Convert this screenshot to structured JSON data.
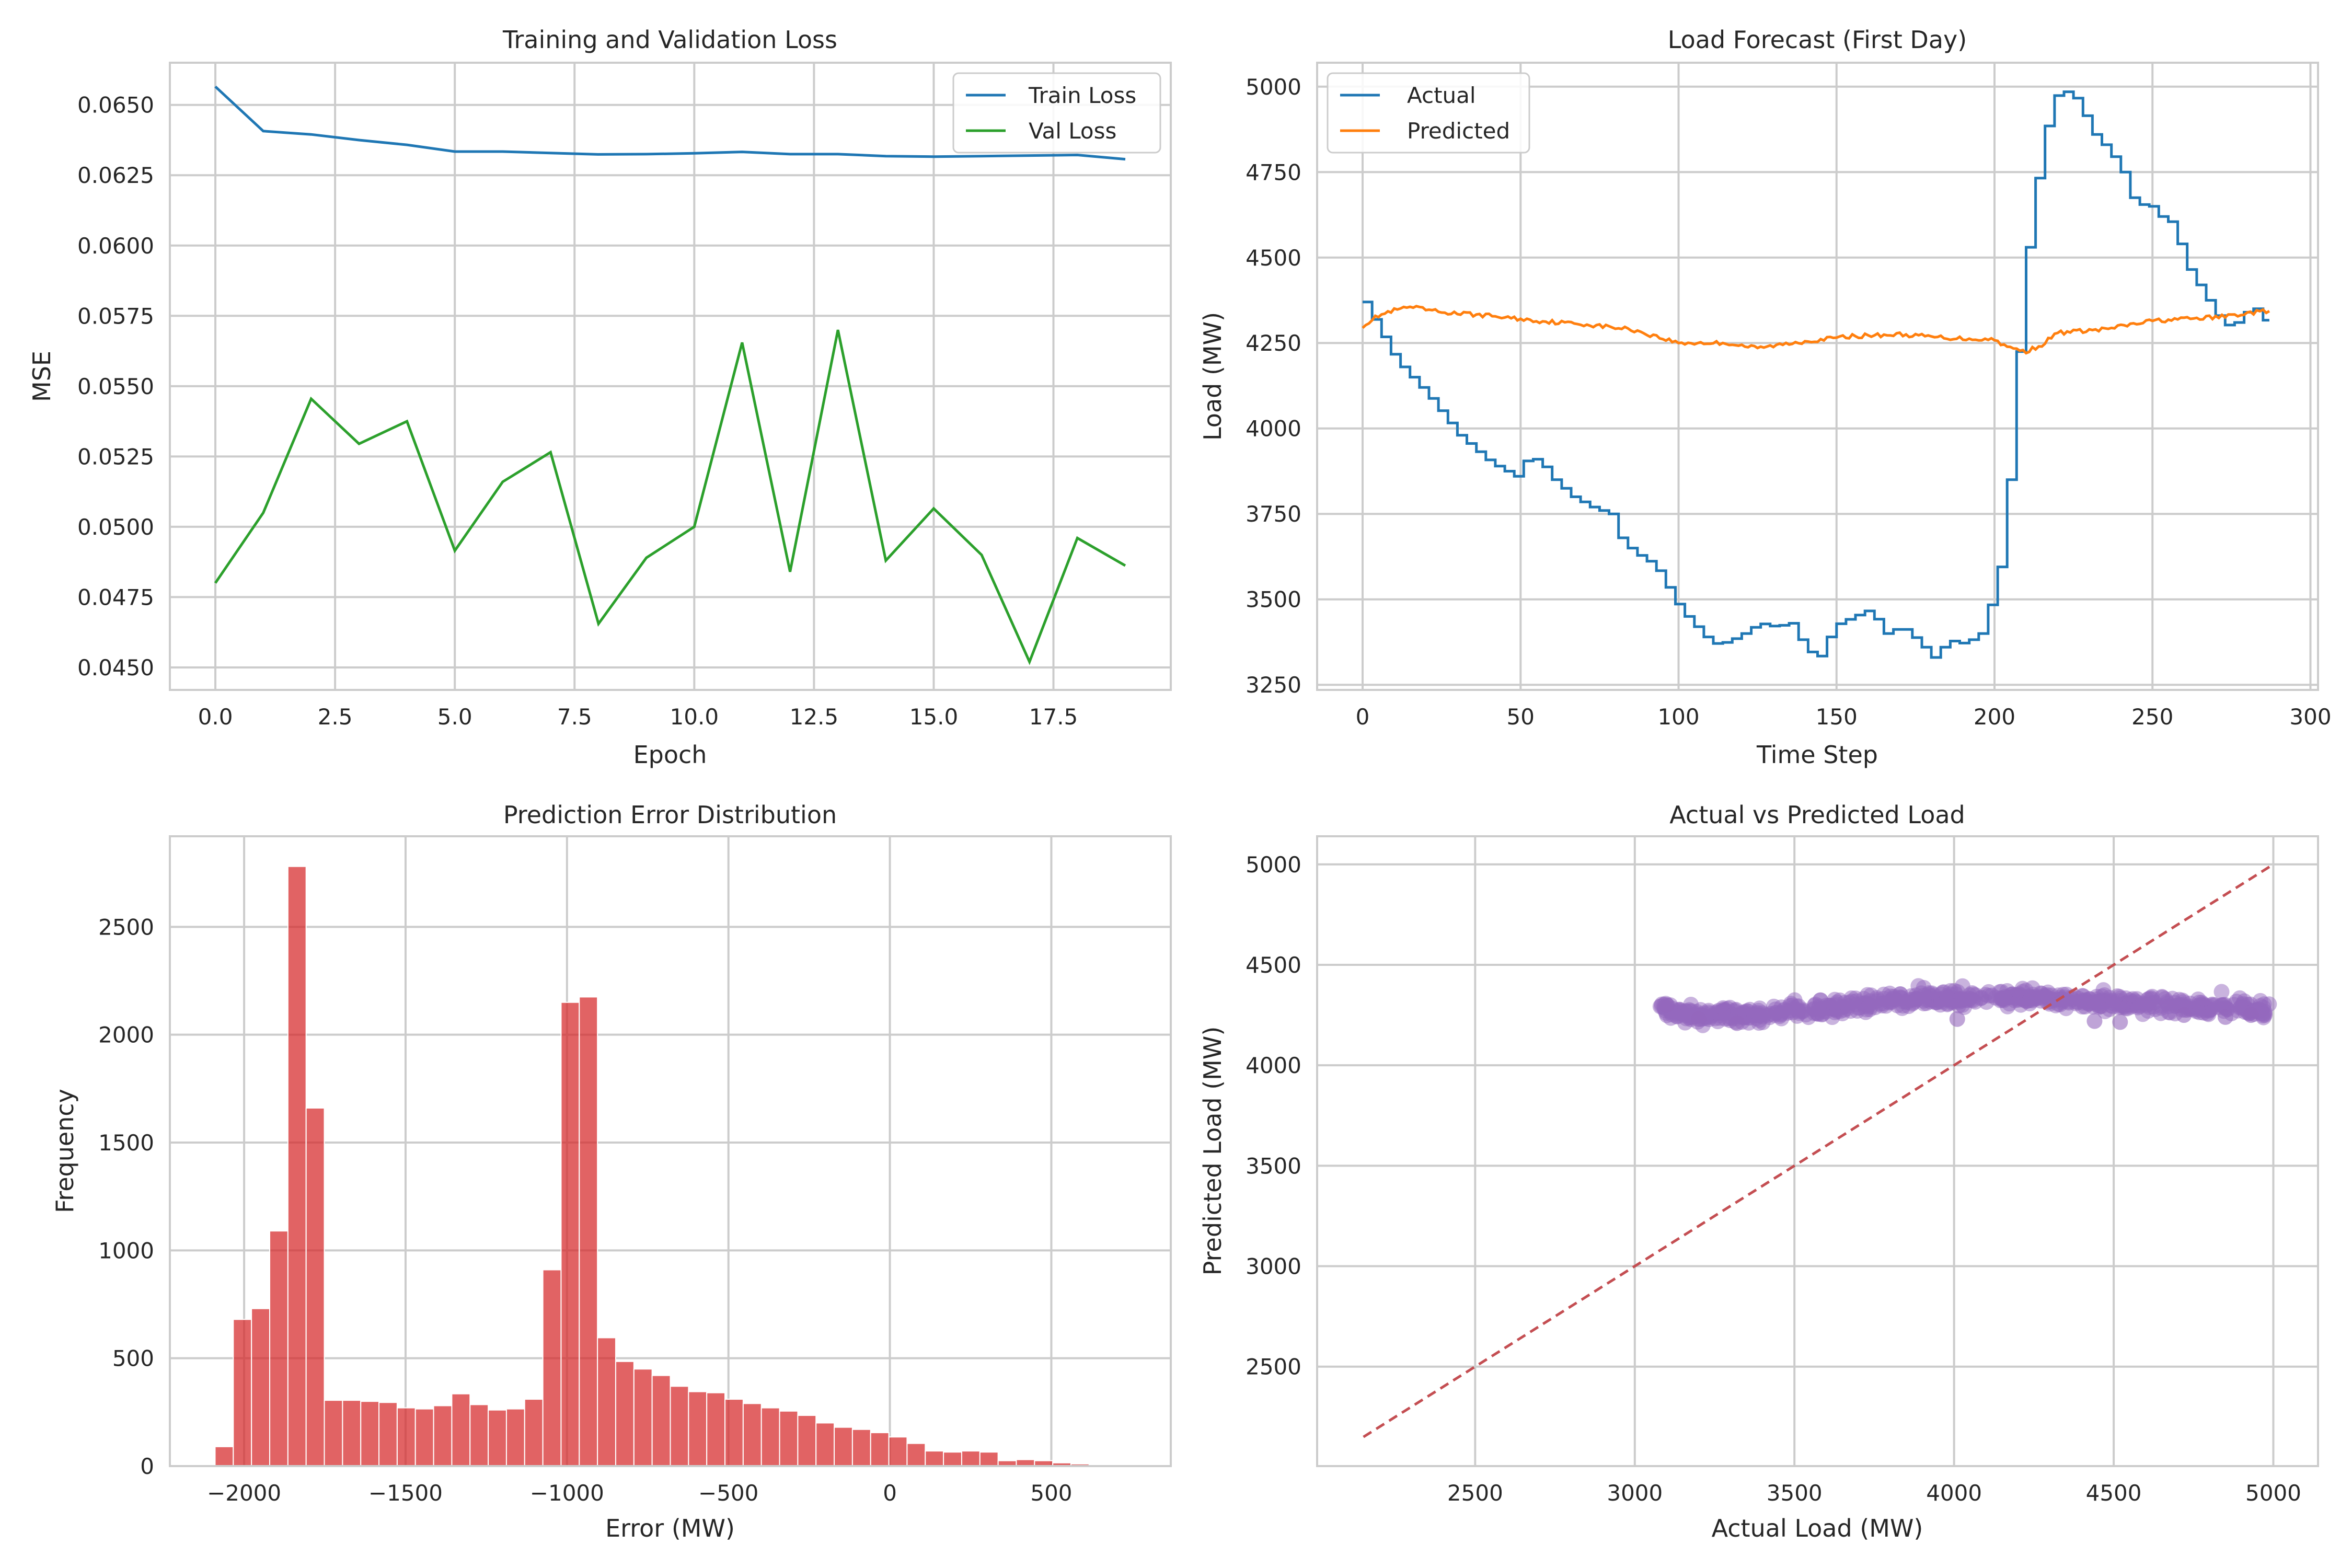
{
  "colors": {
    "train": "#1f77b4",
    "val": "#2ca02c",
    "actual": "#1f77b4",
    "predicted": "#ff7f0e",
    "hist": "#d62728",
    "scatter": "#9467bd",
    "ideal": "#c44e52"
  },
  "chart_data": [
    {
      "type": "line",
      "title": "Training and Validation Loss",
      "xlabel": "Epoch",
      "ylabel": "MSE",
      "xlim": [
        -0.95,
        19.95
      ],
      "ylim": [
        0.0442,
        0.0665
      ],
      "xticks": [
        0,
        2.5,
        5,
        7.5,
        10,
        12.5,
        15,
        17.5
      ],
      "xtick_labels": [
        "0.0",
        "2.5",
        "5.0",
        "7.5",
        "10.0",
        "12.5",
        "15.0",
        "17.5"
      ],
      "yticks": [
        0.045,
        0.0475,
        0.05,
        0.0525,
        0.055,
        0.0575,
        0.06,
        0.0625,
        0.065
      ],
      "ytick_labels": [
        "0.0450",
        "0.0475",
        "0.0500",
        "0.0525",
        "0.0550",
        "0.0575",
        "0.0600",
        "0.0625",
        "0.0650"
      ],
      "grid": true,
      "legend": "top-right",
      "x": [
        0,
        1,
        2,
        3,
        4,
        5,
        6,
        7,
        8,
        9,
        10,
        11,
        12,
        13,
        14,
        15,
        16,
        17,
        18,
        19
      ],
      "series": [
        {
          "name": "Train Loss",
          "color_key": "train",
          "values": [
            0.06565,
            0.06407,
            0.06395,
            0.06375,
            0.06358,
            0.06334,
            0.06334,
            0.06329,
            0.06324,
            0.06325,
            0.06328,
            0.06333,
            0.06325,
            0.06325,
            0.06318,
            0.06316,
            0.06318,
            0.0632,
            0.06322,
            0.06307
          ]
        },
        {
          "name": "Val Loss",
          "color_key": "val",
          "values": [
            0.048,
            0.0505,
            0.05455,
            0.05295,
            0.05375,
            0.04915,
            0.0516,
            0.05265,
            0.04655,
            0.0489,
            0.05,
            0.05655,
            0.0484,
            0.057,
            0.0488,
            0.05065,
            0.049,
            0.0452,
            0.0496,
            0.04862
          ]
        }
      ]
    },
    {
      "type": "line",
      "title": "Load Forecast (First Day)",
      "xlabel": "Time Step",
      "ylabel": "Load (MW)",
      "xlim": [
        -14.4,
        302.4
      ],
      "ylim": [
        3235,
        5070
      ],
      "xticks": [
        0,
        50,
        100,
        150,
        200,
        250,
        300
      ],
      "xtick_labels": [
        "0",
        "50",
        "100",
        "150",
        "200",
        "250",
        "300"
      ],
      "yticks": [
        3250,
        3500,
        3750,
        4000,
        4250,
        4500,
        4750,
        5000
      ],
      "ytick_labels": [
        "3250",
        "3500",
        "3750",
        "4000",
        "4250",
        "4500",
        "4750",
        "5000"
      ],
      "grid": true,
      "legend": "top-left",
      "series": [
        {
          "name": "Actual",
          "color_key": "actual",
          "step": 3,
          "points": [
            [
              0,
              4370
            ],
            [
              10,
              4200
            ],
            [
              20,
              4100
            ],
            [
              30,
              3980
            ],
            [
              40,
              3900
            ],
            [
              48,
              3860
            ],
            [
              52,
              3920
            ],
            [
              56,
              3900
            ],
            [
              60,
              3850
            ],
            [
              66,
              3800
            ],
            [
              72,
              3770
            ],
            [
              78,
              3750
            ],
            [
              80,
              3690
            ],
            [
              85,
              3640
            ],
            [
              92,
              3600
            ],
            [
              100,
              3470
            ],
            [
              105,
              3420
            ],
            [
              110,
              3370
            ],
            [
              115,
              3375
            ],
            [
              120,
              3400
            ],
            [
              125,
              3430
            ],
            [
              130,
              3420
            ],
            [
              135,
              3430
            ],
            [
              140,
              3350
            ],
            [
              145,
              3330
            ],
            [
              148,
              3420
            ],
            [
              155,
              3450
            ],
            [
              160,
              3470
            ],
            [
              165,
              3400
            ],
            [
              170,
              3420
            ],
            [
              175,
              3380
            ],
            [
              180,
              3330
            ],
            [
              185,
              3380
            ],
            [
              190,
              3370
            ],
            [
              195,
              3400
            ],
            [
              200,
              3540
            ],
            [
              202,
              3650
            ],
            [
              204,
              3850
            ],
            [
              206,
              4100
            ],
            [
              208,
              4350
            ],
            [
              210,
              4530
            ],
            [
              214,
              4800
            ],
            [
              218,
              4970
            ],
            [
              222,
              4985
            ],
            [
              226,
              4960
            ],
            [
              230,
              4870
            ],
            [
              236,
              4810
            ],
            [
              240,
              4750
            ],
            [
              244,
              4650
            ],
            [
              248,
              4660
            ],
            [
              252,
              4620
            ],
            [
              256,
              4600
            ],
            [
              260,
              4480
            ],
            [
              264,
              4420
            ],
            [
              268,
              4360
            ],
            [
              272,
              4300
            ],
            [
              276,
              4310
            ],
            [
              280,
              4350
            ],
            [
              284,
              4350
            ],
            [
              287,
              4250
            ]
          ]
        },
        {
          "name": "Predicted",
          "color_key": "predicted",
          "step": 2,
          "noise": 6,
          "points": [
            [
              0,
              4300
            ],
            [
              5,
              4330
            ],
            [
              10,
              4345
            ],
            [
              15,
              4355
            ],
            [
              25,
              4340
            ],
            [
              40,
              4330
            ],
            [
              55,
              4315
            ],
            [
              70,
              4305
            ],
            [
              85,
              4290
            ],
            [
              100,
              4250
            ],
            [
              115,
              4250
            ],
            [
              125,
              4235
            ],
            [
              140,
              4255
            ],
            [
              155,
              4270
            ],
            [
              170,
              4275
            ],
            [
              185,
              4265
            ],
            [
              200,
              4260
            ],
            [
              205,
              4235
            ],
            [
              210,
              4225
            ],
            [
              215,
              4245
            ],
            [
              220,
              4280
            ],
            [
              235,
              4290
            ],
            [
              250,
              4315
            ],
            [
              260,
              4320
            ],
            [
              270,
              4325
            ],
            [
              287,
              4345
            ]
          ]
        }
      ]
    },
    {
      "type": "bar",
      "title": "Prediction Error Distribution",
      "xlabel": "Error (MW)",
      "ylabel": "Frequency",
      "xlim": [
        -2230,
        870
      ],
      "ylim": [
        0,
        2920
      ],
      "xticks": [
        -2000,
        -1500,
        -1000,
        -500,
        0,
        500
      ],
      "xtick_labels": [
        "−2000",
        "−1500",
        "−1000",
        "−500",
        "0",
        "500"
      ],
      "yticks": [
        0,
        500,
        1000,
        1500,
        2000,
        2500
      ],
      "ytick_labels": [
        "0",
        "500",
        "1000",
        "1500",
        "2000",
        "2500"
      ],
      "grid": true,
      "bin_start": -2090,
      "bin_width": 56.4,
      "values": [
        90,
        680,
        730,
        1090,
        2780,
        1660,
        305,
        305,
        300,
        295,
        270,
        265,
        280,
        335,
        285,
        260,
        265,
        310,
        910,
        2150,
        2175,
        595,
        485,
        450,
        420,
        370,
        345,
        340,
        310,
        290,
        270,
        255,
        235,
        200,
        180,
        170,
        155,
        135,
        105,
        70,
        65,
        70,
        65,
        25,
        30,
        25,
        15,
        10,
        5,
        0
      ]
    },
    {
      "type": "scatter",
      "title": "Actual vs Predicted Load",
      "xlabel": "Actual Load (MW)",
      "ylabel": "Predicted Load (MW)",
      "xlim": [
        2005,
        5140
      ],
      "ylim": [
        2005,
        5140
      ],
      "xticks": [
        2500,
        3000,
        3500,
        4000,
        4500,
        5000
      ],
      "xtick_labels": [
        "2500",
        "3000",
        "3500",
        "4000",
        "4500",
        "5000"
      ],
      "yticks": [
        2500,
        3000,
        3500,
        4000,
        4500,
        5000
      ],
      "ytick_labels": [
        "2500",
        "3000",
        "3500",
        "4000",
        "4500",
        "5000"
      ],
      "grid": true,
      "x_range": [
        3080,
        4990
      ],
      "n_points": 650,
      "trend": [
        [
          3080,
          4285
        ],
        [
          3200,
          4245
        ],
        [
          3400,
          4255
        ],
        [
          3600,
          4285
        ],
        [
          3800,
          4320
        ],
        [
          4000,
          4330
        ],
        [
          4200,
          4340
        ],
        [
          4400,
          4325
        ],
        [
          4600,
          4300
        ],
        [
          4800,
          4290
        ],
        [
          4990,
          4280
        ]
      ],
      "spread": 35,
      "outliers": [
        [
          3100,
          4300
        ],
        [
          3200,
          4230
        ],
        [
          3320,
          4210
        ],
        [
          4010,
          4230
        ],
        [
          4440,
          4220
        ],
        [
          4520,
          4215
        ],
        [
          4720,
          4250
        ],
        [
          4850,
          4240
        ],
        [
          4930,
          4250
        ]
      ],
      "ideal_line": [
        [
          2150,
          2150
        ],
        [
          4990,
          4990
        ]
      ]
    }
  ]
}
